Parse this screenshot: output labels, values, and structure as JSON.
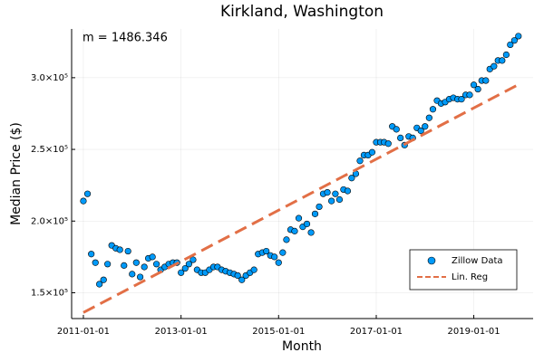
{
  "chart_data": {
    "type": "scatter",
    "title": "Kirkland, Washington",
    "x_label": "Month",
    "y_label": "Median Price ($)",
    "annotation": "m = 1486.346",
    "grid": true,
    "legend": "lower right",
    "xlim": [
      "2010-10-05",
      "2020-03-20"
    ],
    "xticks": [
      "2011-01-01",
      "2013-01-01",
      "2015-01-01",
      "2017-01-01",
      "2019-01-01"
    ],
    "ylim": [
      132000,
      334000
    ],
    "yticks": [
      {
        "value": 150000,
        "label": "1.5×10⁵"
      },
      {
        "value": 200000,
        "label": "2.0×10⁵"
      },
      {
        "value": 250000,
        "label": "2.5×10⁵"
      },
      {
        "value": 300000,
        "label": "3.0×10⁵"
      }
    ],
    "series": [
      {
        "name": "Zillow Data",
        "color": "#009af9",
        "type": "scatter",
        "x": [
          "2011-01-01",
          "2011-02-01",
          "2011-03-01",
          "2011-04-01",
          "2011-05-01",
          "2011-06-01",
          "2011-07-01",
          "2011-08-01",
          "2011-09-01",
          "2011-10-01",
          "2011-11-01",
          "2011-12-01",
          "2012-01-01",
          "2012-02-01",
          "2012-03-01",
          "2012-04-01",
          "2012-05-01",
          "2012-06-01",
          "2012-07-01",
          "2012-08-01",
          "2012-09-01",
          "2012-10-01",
          "2012-11-01",
          "2012-12-01",
          "2013-01-01",
          "2013-02-01",
          "2013-03-01",
          "2013-04-01",
          "2013-05-01",
          "2013-06-01",
          "2013-07-01",
          "2013-08-01",
          "2013-09-01",
          "2013-10-01",
          "2013-11-01",
          "2013-12-01",
          "2014-01-01",
          "2014-02-01",
          "2014-03-01",
          "2014-04-01",
          "2014-05-01",
          "2014-06-01",
          "2014-07-01",
          "2014-08-01",
          "2014-09-01",
          "2014-10-01",
          "2014-11-01",
          "2014-12-01",
          "2015-01-01",
          "2015-02-01",
          "2015-03-01",
          "2015-04-01",
          "2015-05-01",
          "2015-06-01",
          "2015-07-01",
          "2015-08-01",
          "2015-09-01",
          "2015-10-01",
          "2015-11-01",
          "2015-12-01",
          "2016-01-01",
          "2016-02-01",
          "2016-03-01",
          "2016-04-01",
          "2016-05-01",
          "2016-06-01",
          "2016-07-01",
          "2016-08-01",
          "2016-09-01",
          "2016-10-01",
          "2016-11-01",
          "2016-12-01",
          "2017-01-01",
          "2017-02-01",
          "2017-03-01",
          "2017-04-01",
          "2017-05-01",
          "2017-06-01",
          "2017-07-01",
          "2017-08-01",
          "2017-09-01",
          "2017-10-01",
          "2017-11-01",
          "2017-12-01",
          "2018-01-01",
          "2018-02-01",
          "2018-03-01",
          "2018-04-01",
          "2018-05-01",
          "2018-06-01",
          "2018-07-01",
          "2018-08-01",
          "2018-09-01",
          "2018-10-01",
          "2018-11-01",
          "2018-12-01",
          "2019-01-01",
          "2019-02-01",
          "2019-03-01",
          "2019-04-01",
          "2019-05-01",
          "2019-06-01",
          "2019-07-01",
          "2019-08-01",
          "2019-09-01",
          "2019-10-01",
          "2019-11-01",
          "2019-12-01"
        ],
        "values": [
          214000,
          219000,
          177000,
          171000,
          156000,
          159000,
          170000,
          183000,
          181000,
          180000,
          169000,
          179000,
          163000,
          171000,
          161000,
          168000,
          174000,
          175000,
          170000,
          166000,
          168000,
          170000,
          171000,
          171000,
          164000,
          167000,
          170000,
          173000,
          166000,
          164000,
          164000,
          166000,
          168000,
          168000,
          166000,
          165000,
          164000,
          163000,
          162000,
          159000,
          162000,
          164000,
          166000,
          177000,
          178000,
          179000,
          176000,
          175000,
          171000,
          178000,
          187000,
          194000,
          193000,
          202000,
          196000,
          198000,
          192000,
          205000,
          210000,
          219000,
          220000,
          214000,
          219000,
          215000,
          222000,
          221000,
          230000,
          233000,
          242000,
          246000,
          246000,
          248000,
          255000,
          255000,
          255000,
          254000,
          266000,
          264000,
          258000,
          253000,
          259000,
          258000,
          265000,
          263000,
          266000,
          272000,
          278000,
          284000,
          282000,
          283000,
          285000,
          286000,
          285000,
          285000,
          288000,
          288000,
          295000,
          292000,
          298000,
          298000,
          306000,
          308000,
          312000,
          312000,
          316000,
          323000,
          326000,
          329000
        ]
      },
      {
        "name": "Lin. Reg",
        "color": "#e26f46",
        "type": "line",
        "style": "dashed",
        "x": [
          "2011-01-01",
          "2019-12-01"
        ],
        "values": [
          136200,
          295200
        ]
      }
    ]
  }
}
